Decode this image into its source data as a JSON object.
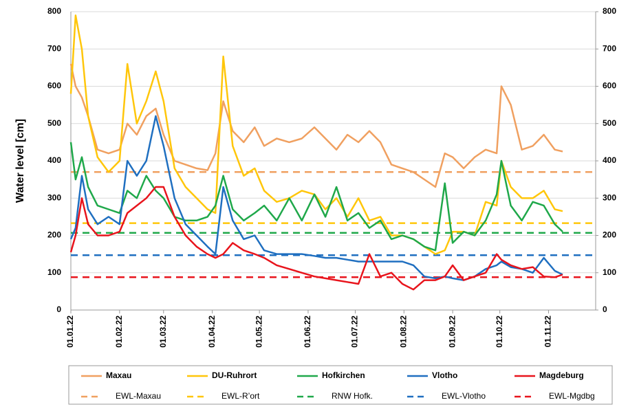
{
  "chart_data": {
    "type": "line",
    "y_label": "Water level [cm]",
    "x": [
      "2022-01-01",
      "2022-01-04",
      "2022-01-08",
      "2022-01-12",
      "2022-01-18",
      "2022-01-25",
      "2022-02-01",
      "2022-02-06",
      "2022-02-12",
      "2022-02-18",
      "2022-02-24",
      "2022-03-01",
      "2022-03-08",
      "2022-03-15",
      "2022-03-22",
      "2022-03-29",
      "2022-04-03",
      "2022-04-08",
      "2022-04-14",
      "2022-04-21",
      "2022-04-28",
      "2022-05-04",
      "2022-05-12",
      "2022-05-20",
      "2022-05-28",
      "2022-06-05",
      "2022-06-12",
      "2022-06-19",
      "2022-06-26",
      "2022-07-03",
      "2022-07-10",
      "2022-07-17",
      "2022-07-24",
      "2022-07-31",
      "2022-08-07",
      "2022-08-14",
      "2022-08-21",
      "2022-08-27",
      "2022-09-01",
      "2022-09-08",
      "2022-09-15",
      "2022-09-22",
      "2022-09-29",
      "2022-10-02",
      "2022-10-08",
      "2022-10-15",
      "2022-10-22",
      "2022-10-29",
      "2022-11-05",
      "2022-11-10"
    ],
    "series": [
      {
        "name": "Maxau",
        "color": "#f0a060",
        "values": [
          660,
          600,
          570,
          520,
          430,
          420,
          430,
          500,
          470,
          520,
          540,
          470,
          400,
          390,
          380,
          375,
          420,
          560,
          480,
          450,
          490,
          440,
          460,
          450,
          460,
          490,
          460,
          430,
          470,
          450,
          480,
          450,
          390,
          380,
          370,
          350,
          330,
          420,
          410,
          380,
          410,
          430,
          420,
          600,
          550,
          430,
          440,
          470,
          430,
          425
        ]
      },
      {
        "name": "DU-Ruhrort",
        "color": "#ffc60a",
        "values": [
          580,
          790,
          700,
          520,
          410,
          370,
          400,
          660,
          500,
          560,
          640,
          560,
          380,
          330,
          300,
          270,
          260,
          680,
          440,
          360,
          380,
          320,
          290,
          300,
          320,
          310,
          270,
          300,
          250,
          300,
          240,
          250,
          200,
          200,
          190,
          170,
          150,
          160,
          210,
          210,
          200,
          290,
          280,
          400,
          330,
          300,
          300,
          320,
          270,
          265
        ]
      },
      {
        "name": "Hofkirchen",
        "color": "#1fa84a",
        "values": [
          450,
          350,
          410,
          330,
          280,
          270,
          260,
          320,
          300,
          360,
          320,
          300,
          250,
          240,
          240,
          250,
          280,
          360,
          270,
          240,
          260,
          280,
          240,
          300,
          240,
          310,
          250,
          330,
          240,
          260,
          220,
          240,
          190,
          200,
          190,
          170,
          160,
          340,
          180,
          210,
          200,
          240,
          310,
          400,
          280,
          240,
          290,
          280,
          230,
          210
        ]
      },
      {
        "name": "Vlotho",
        "color": "#1f6fc0",
        "values": [
          190,
          220,
          360,
          270,
          230,
          250,
          230,
          400,
          360,
          400,
          520,
          440,
          300,
          230,
          200,
          170,
          150,
          330,
          240,
          190,
          200,
          160,
          150,
          150,
          150,
          145,
          140,
          140,
          135,
          130,
          130,
          130,
          130,
          130,
          120,
          90,
          85,
          90,
          85,
          80,
          90,
          110,
          120,
          130,
          115,
          110,
          100,
          140,
          105,
          95
        ]
      },
      {
        "name": "Magdeburg",
        "color": "#e8141c",
        "values": [
          155,
          200,
          300,
          230,
          200,
          200,
          210,
          260,
          280,
          300,
          330,
          330,
          250,
          200,
          170,
          150,
          140,
          150,
          180,
          160,
          150,
          140,
          120,
          110,
          100,
          90,
          85,
          80,
          75,
          70,
          150,
          90,
          100,
          70,
          55,
          80,
          80,
          90,
          120,
          80,
          90,
          100,
          150,
          135,
          120,
          110,
          115,
          90,
          88,
          95
        ]
      }
    ],
    "reference_lines": [
      {
        "name": "EWL-Maxau",
        "color": "#f0a060",
        "value": 370
      },
      {
        "name": "EWL-R’ort",
        "color": "#ffc60a",
        "value": 233
      },
      {
        "name": "RNW Hofk.",
        "color": "#1fa84a",
        "value": 207
      },
      {
        "name": "EWL-Vlotho",
        "color": "#1f6fc0",
        "value": 147
      },
      {
        "name": "EWL-Mgdbg",
        "color": "#e8141c",
        "value": 88
      }
    ],
    "xlim": [
      "2022-01-01",
      "2022-12-01"
    ],
    "xticks": [
      {
        "value": "2022-01-01",
        "label": "01.01.22"
      },
      {
        "value": "2022-02-01",
        "label": "01.02.22"
      },
      {
        "value": "2022-03-01",
        "label": "01.03.22"
      },
      {
        "value": "2022-04-01",
        "label": "01.04.22"
      },
      {
        "value": "2022-05-01",
        "label": "01.05.22"
      },
      {
        "value": "2022-06-01",
        "label": "01.06.22"
      },
      {
        "value": "2022-07-01",
        "label": "01.07.22"
      },
      {
        "value": "2022-08-01",
        "label": "01.08.22"
      },
      {
        "value": "2022-09-01",
        "label": "01.09.22"
      },
      {
        "value": "2022-10-01",
        "label": "01.10.22"
      },
      {
        "value": "2022-11-01",
        "label": "01.11.22"
      }
    ],
    "ylim": [
      0,
      800
    ],
    "yticks": [
      0,
      100,
      200,
      300,
      400,
      500,
      600,
      700,
      800
    ],
    "y2lim": [
      0,
      800
    ],
    "y2ticks": [
      0,
      100,
      200,
      300,
      400,
      500,
      600,
      700,
      800
    ],
    "grid": true
  }
}
